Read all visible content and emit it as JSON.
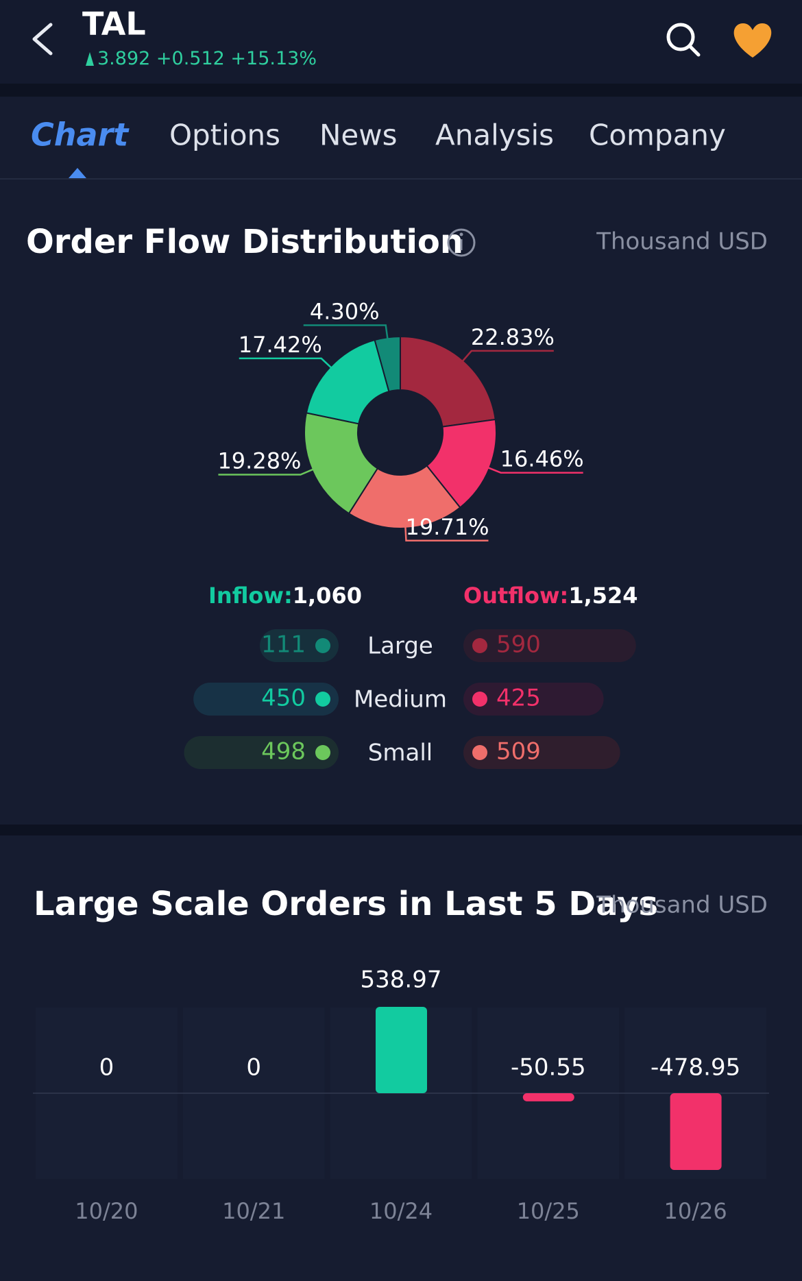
{
  "header": {
    "ticker": "TAL",
    "price": "3.892",
    "change": "+0.512",
    "change_pct": "+15.13%"
  },
  "tabs": [
    "Chart",
    "Options",
    "News",
    "Analysis",
    "Company"
  ],
  "order_flow": {
    "title": "Order Flow Distribution",
    "unit": "Thousand USD",
    "donut": {
      "type": "pie",
      "values": [
        22.83,
        16.46,
        19.71,
        19.28,
        17.42,
        4.3
      ],
      "value_labels": [
        "22.83%",
        "16.46%",
        "19.71%",
        "19.28%",
        "17.42%",
        "4.30%"
      ],
      "colors": [
        "#a3283f",
        "#f2316a",
        "#ef6e6b",
        "#6cc75c",
        "#12cba0",
        "#128a77"
      ]
    },
    "inflow_label": "Inflow:",
    "inflow_total": "1,060",
    "outflow_label": "Outflow:",
    "outflow_total": "1,524",
    "rows": [
      {
        "name": "Large",
        "inflow": 111,
        "outflow": 590
      },
      {
        "name": "Medium",
        "inflow": 450,
        "outflow": 425
      },
      {
        "name": "Small",
        "inflow": 498,
        "outflow": 509
      }
    ]
  },
  "chart_data": {
    "type": "bar",
    "title": "Large Scale Orders in Last 5 Days",
    "unit": "Thousand USD",
    "categories": [
      "10/20",
      "10/21",
      "10/24",
      "10/25",
      "10/26"
    ],
    "values": [
      0,
      0,
      538.97,
      -50.55,
      -478.95
    ],
    "positive_color": "#12cba0",
    "negative_color": "#f2316a"
  }
}
